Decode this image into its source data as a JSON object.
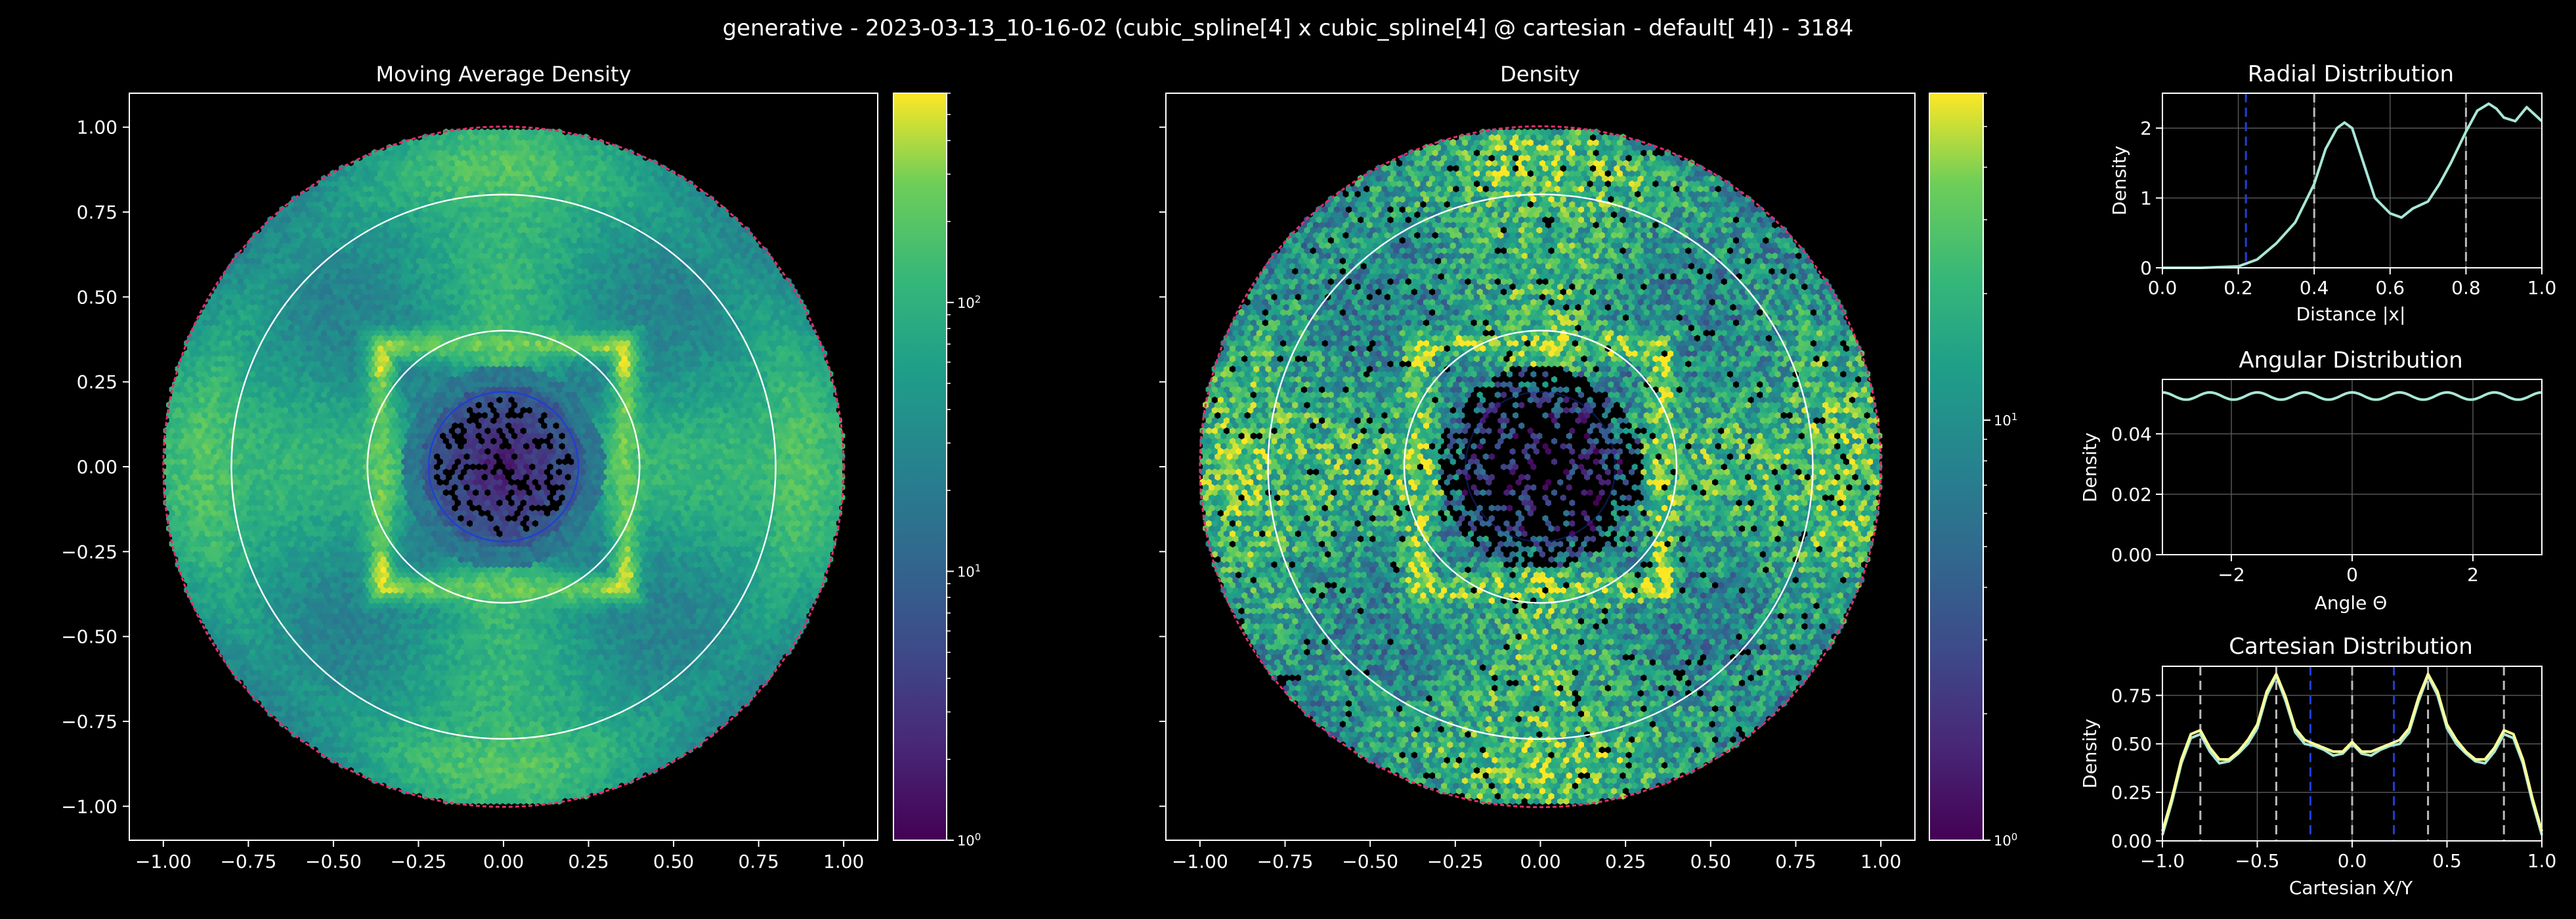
{
  "suptitle": "generative - 2023-03-13_10-16-02 (cubic_spline[4] x cubic_spline[4] @ cartesian - default[   4]) - 3184",
  "colors": {
    "background": "#000000",
    "foreground": "#ffffff",
    "reference_circles": "#ffffff",
    "inner_circle": "#1f3fd6",
    "boundary": "#e0306a",
    "radial_curve": "#a8e6d6",
    "angular_curve": "#a8e6d6",
    "cartesian_curve_x": "#a8e6d6",
    "cartesian_curve_y": "#ffff99",
    "ref_lines": "#bbbbbb",
    "inner_lines": "#1f3fd6",
    "grid": "#555555"
  },
  "chart_data": [
    {
      "id": "moving_average_density",
      "type": "heatmap",
      "title": "Moving Average Density",
      "xlim": [
        -1.1,
        1.1
      ],
      "ylim": [
        -1.1,
        1.1
      ],
      "xticks": [
        "−1.00",
        "−0.75",
        "−0.50",
        "−0.25",
        "0.00",
        "0.25",
        "0.50",
        "0.75",
        "1.00"
      ],
      "yticks": [
        "1.00",
        "0.75",
        "0.50",
        "0.25",
        "0.00",
        "−0.25",
        "−0.50",
        "−0.75",
        "−1.00"
      ],
      "tick_values": [
        -1.0,
        -0.75,
        -0.5,
        -0.25,
        0.0,
        0.25,
        0.5,
        0.75,
        1.0
      ],
      "reference_circle_radii": [
        0.4,
        0.8
      ],
      "inner_circle_radius": 0.22,
      "domain_radius": 1.0,
      "colorbar": {
        "scale": "log",
        "range": [
          1,
          600
        ],
        "colormap": "viridis",
        "tick_labels": [
          "10^0",
          "10^1",
          "10^2"
        ],
        "tick_values": [
          1,
          10,
          100
        ]
      }
    },
    {
      "id": "density",
      "type": "heatmap",
      "title": "Density",
      "xlim": [
        -1.1,
        1.1
      ],
      "ylim": [
        -1.1,
        1.1
      ],
      "xticks": [
        "−1.00",
        "−0.75",
        "−0.50",
        "−0.25",
        "0.00",
        "0.25",
        "0.50",
        "0.75",
        "1.00"
      ],
      "tick_values": [
        -1.0,
        -0.75,
        -0.5,
        -0.25,
        0.0,
        0.25,
        0.5,
        0.75,
        1.0
      ],
      "reference_circle_radii": [
        0.4,
        0.8
      ],
      "inner_circle_radius": 0.22,
      "domain_radius": 1.0,
      "colorbar": {
        "scale": "log",
        "range": [
          1,
          60
        ],
        "colormap": "viridis",
        "tick_labels": [
          "10^0",
          "10^1"
        ],
        "tick_values": [
          1,
          10
        ]
      }
    },
    {
      "id": "radial_distribution",
      "type": "line",
      "title": "Radial Distribution",
      "xlabel": "Distance |x|",
      "ylabel": "Density",
      "xlim": [
        0.0,
        1.0
      ],
      "ylim": [
        0,
        2.5
      ],
      "xticks": [
        "0.0",
        "0.2",
        "0.4",
        "0.6",
        "0.8",
        "1.0"
      ],
      "xtick_values": [
        0.0,
        0.2,
        0.4,
        0.6,
        0.8,
        1.0
      ],
      "yticks": [
        "0",
        "1",
        "2"
      ],
      "ytick_values": [
        0,
        1,
        2
      ],
      "vlines_ref": [
        0.4,
        0.8
      ],
      "vlines_inner": [
        0.22
      ],
      "x": [
        0.0,
        0.1,
        0.2,
        0.25,
        0.3,
        0.35,
        0.4,
        0.43,
        0.46,
        0.48,
        0.5,
        0.53,
        0.56,
        0.6,
        0.63,
        0.66,
        0.7,
        0.73,
        0.76,
        0.8,
        0.83,
        0.86,
        0.88,
        0.9,
        0.93,
        0.96,
        1.0
      ],
      "y": [
        0.0,
        0.0,
        0.02,
        0.12,
        0.35,
        0.65,
        1.2,
        1.7,
        2.0,
        2.08,
        2.0,
        1.5,
        1.0,
        0.78,
        0.72,
        0.85,
        0.95,
        1.2,
        1.5,
        1.95,
        2.25,
        2.35,
        2.28,
        2.15,
        2.1,
        2.3,
        2.1
      ]
    },
    {
      "id": "angular_distribution",
      "type": "line",
      "title": "Angular Distribution",
      "xlabel": "Angle Θ",
      "ylabel": "Density",
      "xlim": [
        -3.14159,
        3.14159
      ],
      "ylim": [
        0,
        0.058
      ],
      "xticks": [
        "−2",
        "0",
        "2"
      ],
      "xtick_values": [
        -2,
        0,
        2
      ],
      "yticks": [
        "0.00",
        "0.02",
        "0.04"
      ],
      "ytick_values": [
        0,
        0.02,
        0.04
      ],
      "mean": 0.0525,
      "amplitude": 0.0012,
      "periods": 8
    },
    {
      "id": "cartesian_distribution",
      "type": "line",
      "title": "Cartesian Distribution",
      "xlabel": "Cartesian X/Y",
      "ylabel": "Density",
      "xlim": [
        -1.0,
        1.0
      ],
      "ylim": [
        0,
        0.9
      ],
      "xticks": [
        "−1.0",
        "−0.5",
        "0.0",
        "0.5",
        "1.0"
      ],
      "xtick_values": [
        -1.0,
        -0.5,
        0.0,
        0.5,
        1.0
      ],
      "yticks": [
        "0.00",
        "0.25",
        "0.50",
        "0.75"
      ],
      "ytick_values": [
        0,
        0.25,
        0.5,
        0.75
      ],
      "vlines_ref": [
        -0.8,
        -0.4,
        0.0,
        0.4,
        0.8
      ],
      "vlines_inner": [
        -0.22,
        0.22
      ],
      "series": [
        {
          "x": [
            -1.0,
            -0.95,
            -0.9,
            -0.85,
            -0.8,
            -0.75,
            -0.7,
            -0.65,
            -0.6,
            -0.55,
            -0.5,
            -0.45,
            -0.4,
            -0.35,
            -0.3,
            -0.25,
            -0.2,
            -0.15,
            -0.1,
            -0.05,
            0.0,
            0.05,
            0.1,
            0.15,
            0.2,
            0.25,
            0.3,
            0.35,
            0.4,
            0.45,
            0.5,
            0.55,
            0.6,
            0.65,
            0.7,
            0.75,
            0.8,
            0.85,
            0.9,
            0.95,
            1.0
          ],
          "y": [
            0.03,
            0.2,
            0.4,
            0.53,
            0.55,
            0.46,
            0.4,
            0.41,
            0.45,
            0.5,
            0.58,
            0.75,
            0.85,
            0.72,
            0.56,
            0.5,
            0.49,
            0.47,
            0.44,
            0.45,
            0.5,
            0.45,
            0.44,
            0.47,
            0.49,
            0.5,
            0.56,
            0.72,
            0.85,
            0.75,
            0.58,
            0.5,
            0.45,
            0.41,
            0.4,
            0.46,
            0.55,
            0.53,
            0.4,
            0.2,
            0.03
          ]
        },
        {
          "x": [
            -1.0,
            -0.95,
            -0.9,
            -0.85,
            -0.8,
            -0.75,
            -0.7,
            -0.65,
            -0.6,
            -0.55,
            -0.5,
            -0.45,
            -0.4,
            -0.35,
            -0.3,
            -0.25,
            -0.2,
            -0.15,
            -0.1,
            -0.05,
            0.0,
            0.05,
            0.1,
            0.15,
            0.2,
            0.25,
            0.3,
            0.35,
            0.4,
            0.45,
            0.5,
            0.55,
            0.6,
            0.65,
            0.7,
            0.75,
            0.8,
            0.85,
            0.9,
            0.95,
            1.0
          ],
          "y": [
            0.05,
            0.22,
            0.42,
            0.55,
            0.57,
            0.48,
            0.42,
            0.42,
            0.46,
            0.52,
            0.6,
            0.77,
            0.86,
            0.74,
            0.58,
            0.52,
            0.5,
            0.48,
            0.46,
            0.46,
            0.51,
            0.46,
            0.46,
            0.48,
            0.5,
            0.52,
            0.58,
            0.74,
            0.86,
            0.77,
            0.6,
            0.52,
            0.46,
            0.42,
            0.42,
            0.48,
            0.57,
            0.55,
            0.42,
            0.22,
            0.05
          ]
        }
      ]
    }
  ]
}
